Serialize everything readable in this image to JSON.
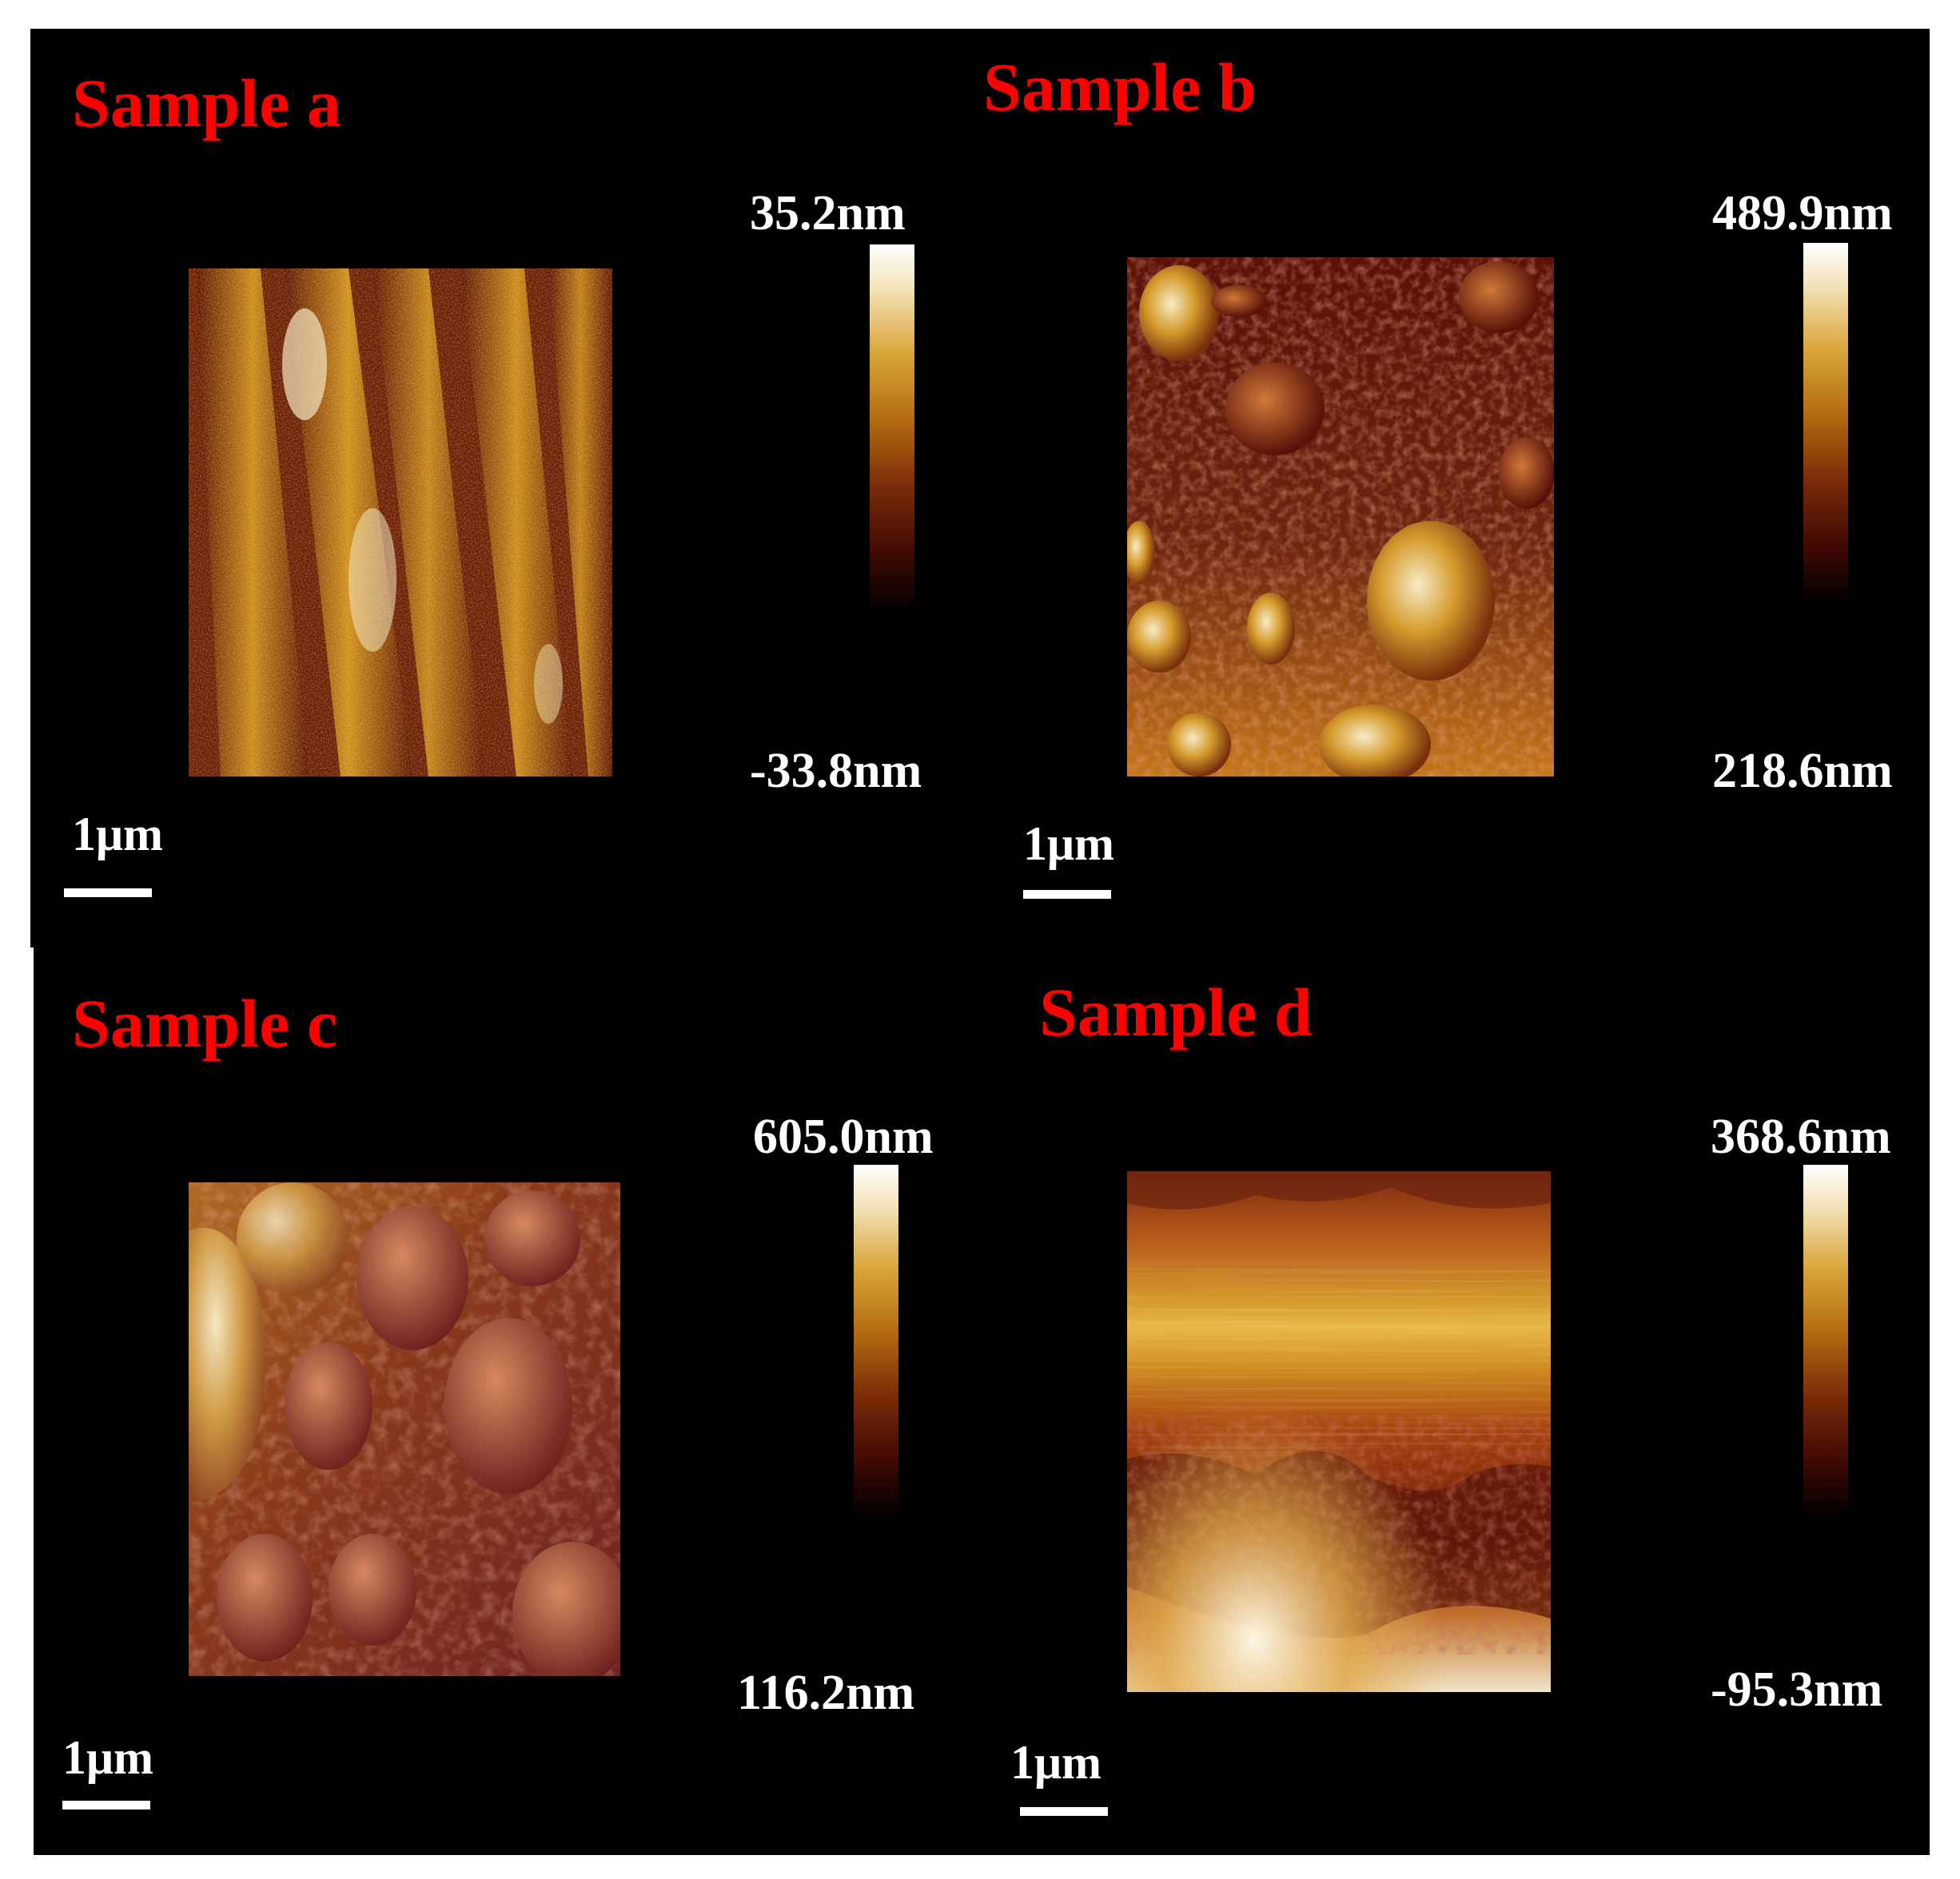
{
  "panels": [
    {
      "title": "Sample a",
      "max_label": "35.2nm",
      "min_label": "-33.8nm",
      "scale_label": "1μm",
      "scheme": "a"
    },
    {
      "title": "Sample b",
      "max_label": "489.9nm",
      "min_label": "218.6nm",
      "scale_label": "1μm",
      "scheme": "b"
    },
    {
      "title": "Sample c",
      "max_label": "605.0nm",
      "min_label": "116.2nm",
      "scale_label": "1μm",
      "scheme": "c"
    },
    {
      "title": "Sample d",
      "max_label": "368.6nm",
      "min_label": "-95.3nm",
      "scale_label": "1μm",
      "scheme": "d"
    }
  ],
  "colors": {
    "title": "#ff0000",
    "background": "#000000",
    "text": "#ffffff"
  }
}
